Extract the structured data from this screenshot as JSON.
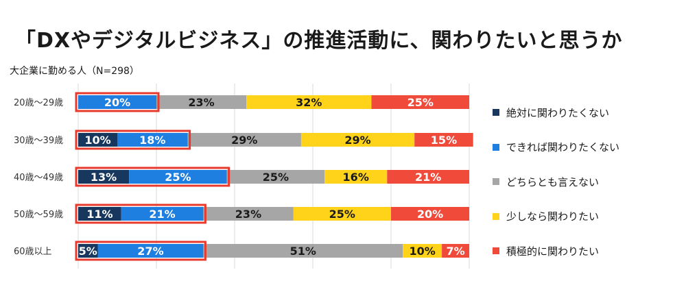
{
  "title": "「DXやデジタルビジネス」の推進活動に、関わりたいと思うか",
  "subtitle": "大企業に勤める人（N=298）",
  "chart_data": {
    "type": "bar",
    "orientation": "horizontal",
    "stacked": "100%",
    "categories": [
      "20歳〜29歳",
      "30歳〜39歳",
      "40歳〜49歳",
      "50歳〜59歳",
      "60歳以上"
    ],
    "series": [
      {
        "name": "絶対に関わりたくない",
        "color": "#17375e",
        "values": [
          0,
          10,
          13,
          11,
          5
        ],
        "labels": [
          "",
          "10%",
          "13%",
          "11%",
          "5%"
        ]
      },
      {
        "name": "できれば関わりたくない",
        "color": "#1e7fe0",
        "values": [
          20,
          18,
          25,
          21,
          27
        ],
        "labels": [
          "20%",
          "18%",
          "25%",
          "21%",
          "27%"
        ]
      },
      {
        "name": "どちらとも言えない",
        "color": "#a6a6a6",
        "values": [
          23,
          29,
          25,
          23,
          51
        ],
        "labels": [
          "23%",
          "29%",
          "25%",
          "23%",
          "51%"
        ]
      },
      {
        "name": "少しなら関わりたい",
        "color": "#ffd31a",
        "values": [
          32,
          29,
          16,
          25,
          10
        ],
        "labels": [
          "32%",
          "29%",
          "16%",
          "25%",
          "10%"
        ]
      },
      {
        "name": "積極的に関わりたい",
        "color": "#f04a3b",
        "values": [
          25,
          15,
          21,
          20,
          7
        ],
        "labels": [
          "25%",
          "15%",
          "21%",
          "20%",
          "7%"
        ]
      }
    ],
    "highlight": {
      "series": [
        "絶対に関わりたくない",
        "できれば関わりたくない"
      ],
      "color": "#e8392d"
    },
    "xlim": [
      0,
      100
    ],
    "grid": true,
    "legend": "right"
  }
}
